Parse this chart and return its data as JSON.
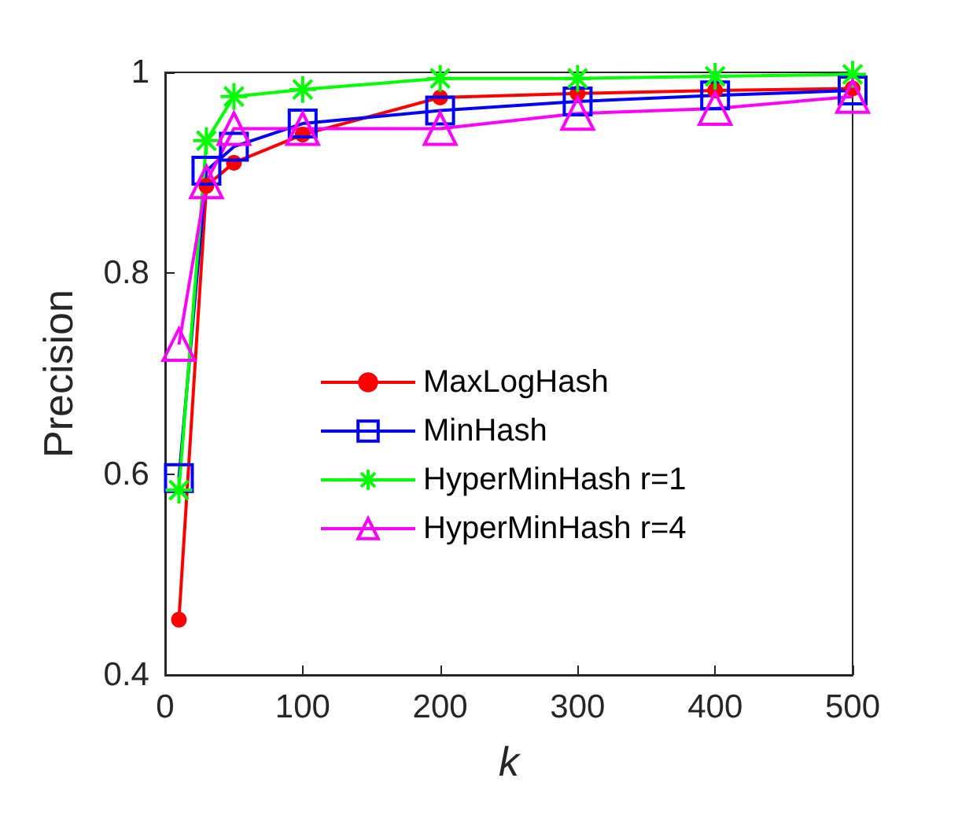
{
  "chart_data": {
    "type": "line",
    "xlabel": "k",
    "ylabel": "Precision",
    "x": [
      10,
      30,
      50,
      100,
      200,
      300,
      400,
      500
    ],
    "xlim": [
      0,
      500
    ],
    "xticks": [
      0,
      100,
      200,
      300,
      400,
      500
    ],
    "ylim": [
      0.4,
      1
    ],
    "yticks": [
      0.4,
      0.6,
      0.8,
      1
    ],
    "grid": false,
    "legend": "right",
    "series": [
      {
        "name": "MaxLogHash",
        "color": "#ff0000",
        "marker": "circle",
        "values": [
          0.455,
          0.887,
          0.91,
          0.938,
          0.975,
          0.979,
          0.982,
          0.984
        ]
      },
      {
        "name": "MinHash",
        "color": "#0000ff",
        "marker": "square",
        "values": [
          0.596,
          0.902,
          0.926,
          0.949,
          0.962,
          0.971,
          0.977,
          0.982
        ]
      },
      {
        "name": "HyperMinHash r=1",
        "color": "#00ff00",
        "marker": "cross",
        "values": [
          0.584,
          0.932,
          0.976,
          0.983,
          0.994,
          0.994,
          0.996,
          0.998
        ]
      },
      {
        "name": "HyperMinHash r=4",
        "color": "#ff00ff",
        "marker": "triangle",
        "values": [
          0.729,
          0.891,
          0.944,
          0.944,
          0.944,
          0.959,
          0.964,
          0.976
        ]
      }
    ]
  }
}
